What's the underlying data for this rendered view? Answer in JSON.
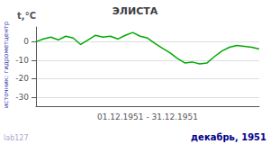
{
  "chart_data": {
    "type": "line",
    "title": "ЭЛИСТА",
    "ylabel": "t,°C",
    "xlabel": "01.12.1951 - 31.12.1951",
    "annotations": [
      "декабрь, 1951",
      "источник: гидрометцентр",
      "lab127"
    ],
    "x": [
      1,
      2,
      3,
      4,
      5,
      6,
      7,
      8,
      9,
      10,
      11,
      12,
      13,
      14,
      15,
      16,
      17,
      18,
      19,
      20,
      21,
      22,
      23,
      24,
      25,
      26,
      27,
      28,
      29,
      30,
      31
    ],
    "values": [
      0.0,
      1.5,
      2.5,
      1.0,
      3.0,
      2.0,
      -1.5,
      1.0,
      3.5,
      2.5,
      3.0,
      1.5,
      3.5,
      5.0,
      3.0,
      2.0,
      -1.0,
      -3.5,
      -6.0,
      -9.0,
      -11.5,
      -11.0,
      -12.0,
      -11.5,
      -8.0,
      -5.0,
      -3.0,
      -2.0,
      -2.5,
      -3.0,
      -4.0
    ],
    "color": "#00aa00",
    "xlim": [
      1,
      31
    ],
    "ylim": [
      -35,
      8
    ],
    "yticks": [
      0,
      -10,
      -20,
      -30
    ],
    "grid": true,
    "tick_labels": "y"
  }
}
